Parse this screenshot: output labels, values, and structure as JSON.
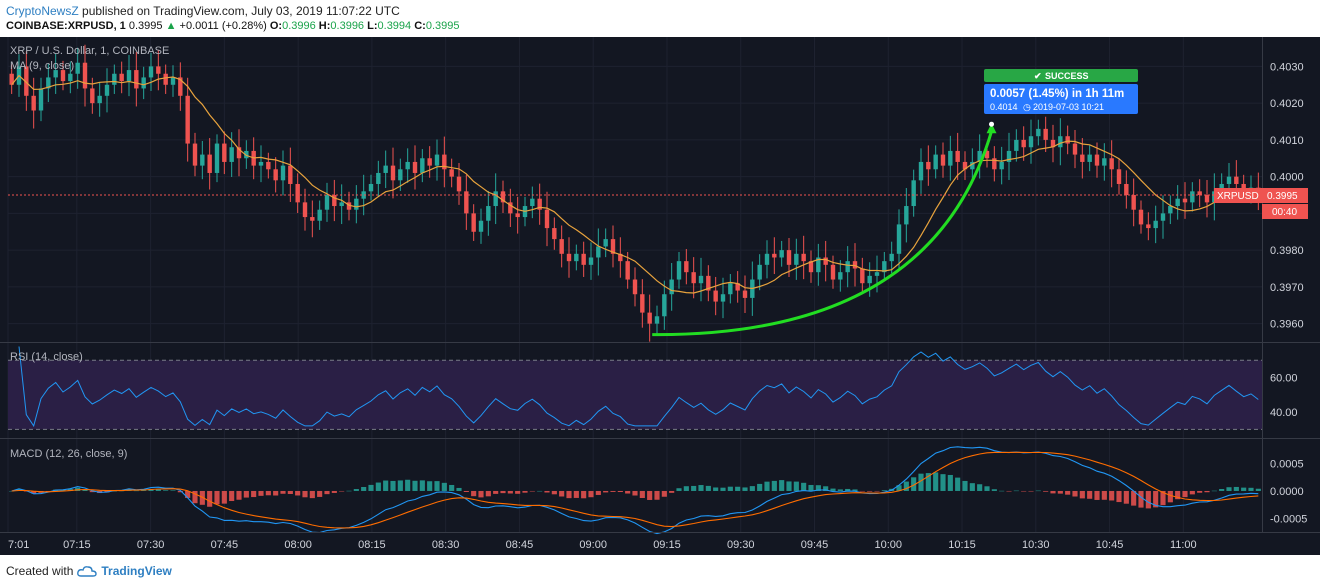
{
  "header": {
    "author": "CryptoNewsZ",
    "published_text": "published on TradingView.com, July 03, 2019 11:07:22 UTC",
    "symbol": "COINBASE:XRPUSD, 1",
    "last": "0.3995",
    "change_arrow": "▲",
    "change": "+0.0011 (+0.28%)",
    "o_label": "O:",
    "o_value": "0.3996",
    "h_label": "H:",
    "h_value": "0.3996",
    "l_label": "L:",
    "l_value": "0.3994",
    "c_label": "C:",
    "c_value": "0.3995"
  },
  "footer": {
    "created_with": "Created with",
    "brand": "TradingView"
  },
  "colors": {
    "background": "#131722",
    "up": "#26a69a",
    "down": "#ef5350",
    "ma_line": "#e8a33d",
    "rsi_line": "#2196f3",
    "rsi_band": "#2a1f45",
    "macd_line": "#2196f3",
    "signal_line": "#ff6d00",
    "hist_up": "#26a69a",
    "hist_down": "#ef5350",
    "arc": "#22dd22",
    "success": "#28a745",
    "info_box": "#2979ff"
  },
  "chart_data": [
    {
      "type": "candlestick",
      "title": "XRP / U.S. Dollar, 1, COINBASE",
      "indicator": "MA (9, close)",
      "price_label": "XRPUSD",
      "price_value": "0.3995",
      "countdown": "00:40",
      "ylim": [
        0.3955,
        0.4038
      ],
      "y_ticks": [
        "0.4030",
        "0.4020",
        "0.4010",
        "0.4000",
        "0.3990",
        "0.3980",
        "0.3970",
        "0.3960"
      ],
      "x_ticks": [
        "7:01",
        "07:15",
        "07:30",
        "07:45",
        "08:00",
        "08:15",
        "08:30",
        "08:45",
        "09:00",
        "09:15",
        "09:30",
        "09:45",
        "10:00",
        "10:15",
        "10:30",
        "10:45",
        "11:00"
      ],
      "x_range_minutes": [
        "07:01",
        "11:16"
      ],
      "closes": [
        0.4025,
        0.403,
        0.4022,
        0.4018,
        0.4024,
        0.4027,
        0.4029,
        0.4026,
        0.4028,
        0.4031,
        0.4024,
        0.402,
        0.4022,
        0.4025,
        0.4028,
        0.4026,
        0.4029,
        0.4024,
        0.4027,
        0.403,
        0.4028,
        0.4025,
        0.4027,
        0.4022,
        0.4009,
        0.4003,
        0.4006,
        0.4001,
        0.4009,
        0.4004,
        0.4008,
        0.4005,
        0.4007,
        0.4003,
        0.4004,
        0.4002,
        0.3999,
        0.4003,
        0.3998,
        0.3993,
        0.3989,
        0.3988,
        0.3991,
        0.3995,
        0.3992,
        0.3993,
        0.3991,
        0.3994,
        0.3996,
        0.3998,
        0.4001,
        0.4003,
        0.3999,
        0.4002,
        0.4004,
        0.4001,
        0.4005,
        0.4003,
        0.4006,
        0.4002,
        0.4,
        0.3996,
        0.399,
        0.3985,
        0.3988,
        0.3992,
        0.3996,
        0.3993,
        0.399,
        0.3989,
        0.3992,
        0.3994,
        0.3991,
        0.3986,
        0.3983,
        0.3979,
        0.3977,
        0.3979,
        0.3976,
        0.3978,
        0.3981,
        0.3983,
        0.3979,
        0.3977,
        0.3972,
        0.3968,
        0.3963,
        0.396,
        0.3962,
        0.3968,
        0.3972,
        0.3977,
        0.3974,
        0.3971,
        0.3973,
        0.3969,
        0.3966,
        0.3968,
        0.3971,
        0.3969,
        0.3967,
        0.3972,
        0.3976,
        0.3979,
        0.3978,
        0.398,
        0.3976,
        0.3979,
        0.3977,
        0.3974,
        0.3978,
        0.3976,
        0.3972,
        0.3974,
        0.3977,
        0.3975,
        0.3971,
        0.3973,
        0.3974,
        0.3977,
        0.3979,
        0.3987,
        0.3992,
        0.3999,
        0.4004,
        0.4002,
        0.4006,
        0.4003,
        0.4007,
        0.4004,
        0.4002,
        0.4004,
        0.4007,
        0.4005,
        0.4002,
        0.4004,
        0.4007,
        0.401,
        0.4008,
        0.4011,
        0.4013,
        0.401,
        0.4008,
        0.4011,
        0.4009,
        0.4006,
        0.4004,
        0.4006,
        0.4003,
        0.4005,
        0.4002,
        0.3998,
        0.3995,
        0.3991,
        0.3987,
        0.3986,
        0.3988,
        0.399,
        0.3992,
        0.3994,
        0.3993,
        0.3996,
        0.3995,
        0.3993,
        0.3996,
        0.3998,
        0.4,
        0.3998,
        0.3996,
        0.3997,
        0.3995
      ]
    },
    {
      "type": "line",
      "title": "RSI (14, close)",
      "ylim": [
        25,
        80
      ],
      "y_ticks": [
        "60.00",
        "40.00"
      ],
      "bands": [
        30,
        70
      ]
    },
    {
      "type": "line",
      "title": "MACD (12, 26, close, 9)",
      "ylim": [
        -0.00075,
        0.00095
      ],
      "y_ticks": [
        "0.0005",
        "0.0000",
        "-0.0005"
      ]
    }
  ],
  "annotation": {
    "success_label": "SUCCESS",
    "summary": "0.0057 (1.45%) in 1h 11m",
    "price": "0.4014",
    "time": "2019-07-03  10:21",
    "start_price": 0.3957,
    "end_price": 0.4014
  }
}
